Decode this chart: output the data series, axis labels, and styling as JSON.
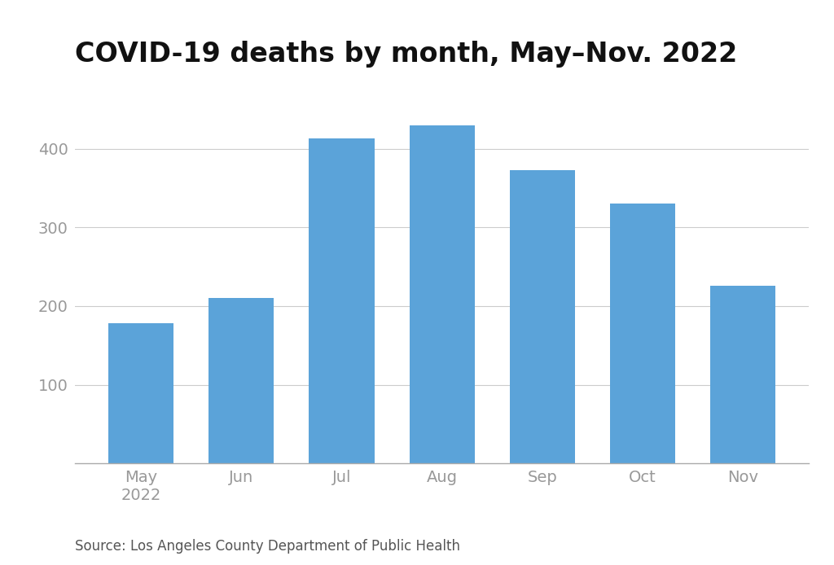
{
  "title": "COVID-19 deaths by month, May–Nov. 2022",
  "categories": [
    "May\n2022",
    "Jun",
    "Jul",
    "Aug",
    "Sep",
    "Oct",
    "Nov"
  ],
  "values": [
    178,
    210,
    413,
    430,
    373,
    330,
    226
  ],
  "bar_color": "#5BA3D9",
  "background_color": "#ffffff",
  "yticks": [
    100,
    200,
    300,
    400
  ],
  "ylim": [
    0,
    460
  ],
  "source_text": "Source: Los Angeles County Department of Public Health",
  "title_fontsize": 24,
  "tick_fontsize": 14,
  "source_fontsize": 12,
  "tick_color": "#999999",
  "grid_color": "#cccccc"
}
